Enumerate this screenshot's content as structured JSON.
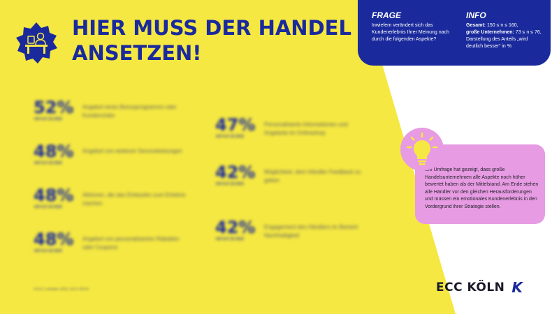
{
  "header": {
    "title_line1": "HIER MUSS DER HANDEL",
    "title_line2": "ANSETZEN!",
    "badge_icon": "shopkeeper-icon"
  },
  "info_panel": {
    "frage_label": "FRAGE",
    "frage_text": "Inwiefern verändert sich das Kundenerlebnis Ihrer Meinung nach durch die folgenden Aspekte?",
    "info_label": "INFO",
    "gesamt_label": "Gesamt:",
    "gesamt_value": "150 ≤ n ≤ 160,",
    "gross_label": "große Unternehmen:",
    "gross_value": "73 ≤ n ≤ 76,",
    "info_note": "Darstellung des Anteils „wird deutlich besser“ in %"
  },
  "stats": [
    {
      "value": "52%",
      "sub": "+00 %-P. ZU 2019",
      "desc": "Angebot eines Bonusprogramms oder Kundenclubs"
    },
    {
      "value": "48%",
      "sub": "+00 %-P. ZU 2019",
      "desc": "Angebot von weiteren Serviceleistungen"
    },
    {
      "value": "48%",
      "sub": "+00 %-P. ZU 2019",
      "desc": "Aktionen, die das Einkaufen zum Erlebnis machen"
    },
    {
      "value": "48%",
      "sub": "+00 %-P. ZU 2019",
      "desc": "Angebot von personalisierten Rabatten oder Coupons"
    },
    {
      "value": "47%",
      "sub": "+00 %-P. ZU 2019",
      "desc": "Personalisierte Informationen und Angebote im Onlineshop"
    },
    {
      "value": "42%",
      "sub": "+00 %-P. ZU 2019",
      "desc": "Möglichkeit, dem Händler Feedback zu geben"
    },
    {
      "value": "42%",
      "sub": "+00 %-P. ZU 2019",
      "desc": "Engagement des Händlers im Bereich Nachhaltigkeit"
    }
  ],
  "footnote": "6 ECC Leitfaden 2022 | ECC KÖLN",
  "note": {
    "icon": "lightbulb-icon",
    "text": "Die Umfrage hat gezeigt, dass große Handelsunternehmen alle Aspekte noch höher bewertet haben als der Mittelstand. Am Ende stehen alle Händler vor den gleichen Herausforderungen und müssen ein emotionales Kundenerlebnis in den Vordergrund ihrer Strategie stellen."
  },
  "brand": {
    "name": "ECC KÖLN",
    "mark": "K"
  },
  "colors": {
    "yellow": "#f5e842",
    "navy": "#1a2a9c",
    "pink": "#e79be3"
  }
}
